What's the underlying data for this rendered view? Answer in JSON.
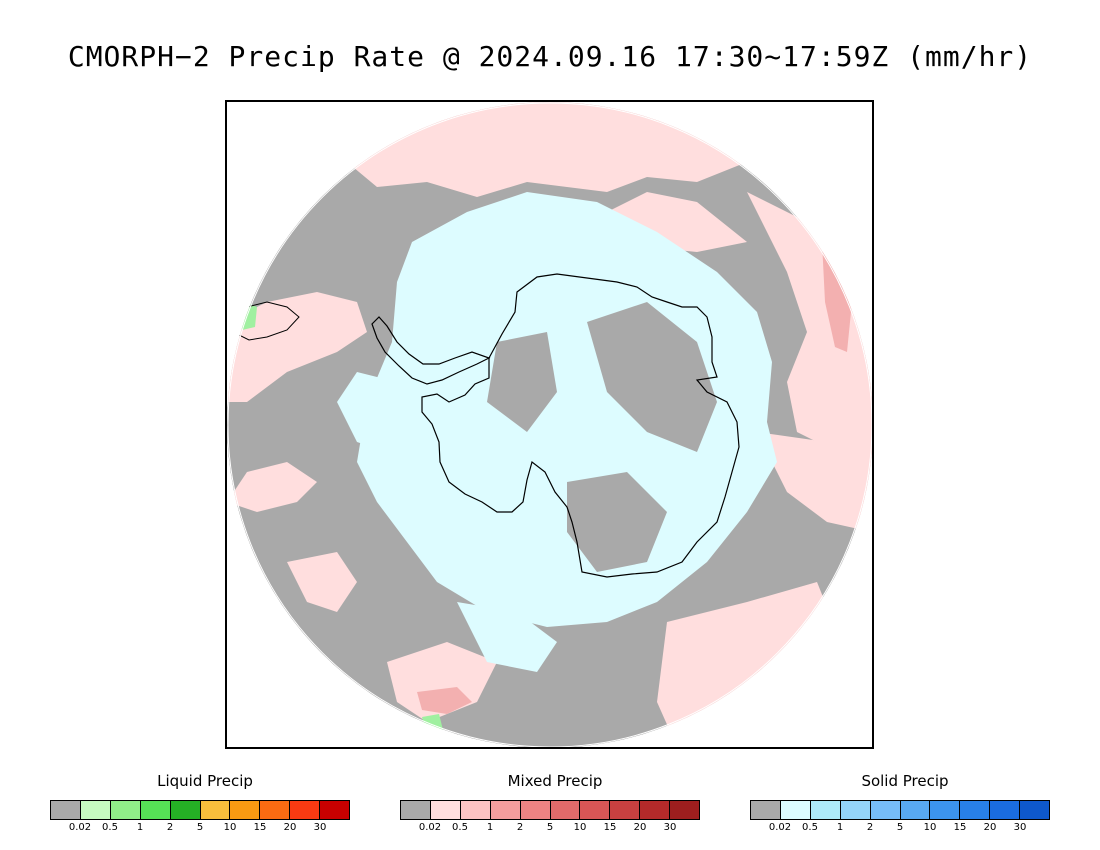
{
  "title": "CMORPH−2 Precip Rate @ 2024.09.16 17:30~17:59Z (mm/hr)",
  "map": {
    "projection": "south-polar-stereographic",
    "colors": {
      "no_precip": "#a9a9a9",
      "mixed_light": "#ffdede",
      "solid_light": "#ddfcff",
      "mixed_moderate": "#f3b0b0",
      "liquid_light": "#a0f0a0",
      "coastline": "#000000",
      "outside": "#ffffff"
    }
  },
  "legends": [
    {
      "id": "liquid",
      "title": "Liquid Precip",
      "ticks": [
        "0.02",
        "0.5",
        "1",
        "2",
        "5",
        "10",
        "15",
        "20",
        "30"
      ],
      "colors": [
        "#a9a9a9",
        "#c6fbc0",
        "#90ef88",
        "#56e156",
        "#25b025",
        "#f8be3c",
        "#fa9a12",
        "#fb6b12",
        "#fa3a12",
        "#c80000"
      ]
    },
    {
      "id": "mixed",
      "title": "Mixed Precip",
      "ticks": [
        "0.02",
        "0.5",
        "1",
        "2",
        "5",
        "10",
        "15",
        "20",
        "30"
      ],
      "colors": [
        "#a9a9a9",
        "#ffdede",
        "#fcc3c3",
        "#f49e9e",
        "#ed8383",
        "#e26a6a",
        "#d85656",
        "#c84040",
        "#b42a2a",
        "#9e1e1e"
      ]
    },
    {
      "id": "solid",
      "title": "Solid Precip",
      "ticks": [
        "0.02",
        "0.5",
        "1",
        "2",
        "5",
        "10",
        "15",
        "20",
        "30"
      ],
      "colors": [
        "#a9a9a9",
        "#ddfcff",
        "#aeeafa",
        "#94d4fa",
        "#76bcf8",
        "#58a8f2",
        "#3c94ee",
        "#2880e8",
        "#1a6ce0",
        "#0e58cc"
      ]
    }
  ]
}
